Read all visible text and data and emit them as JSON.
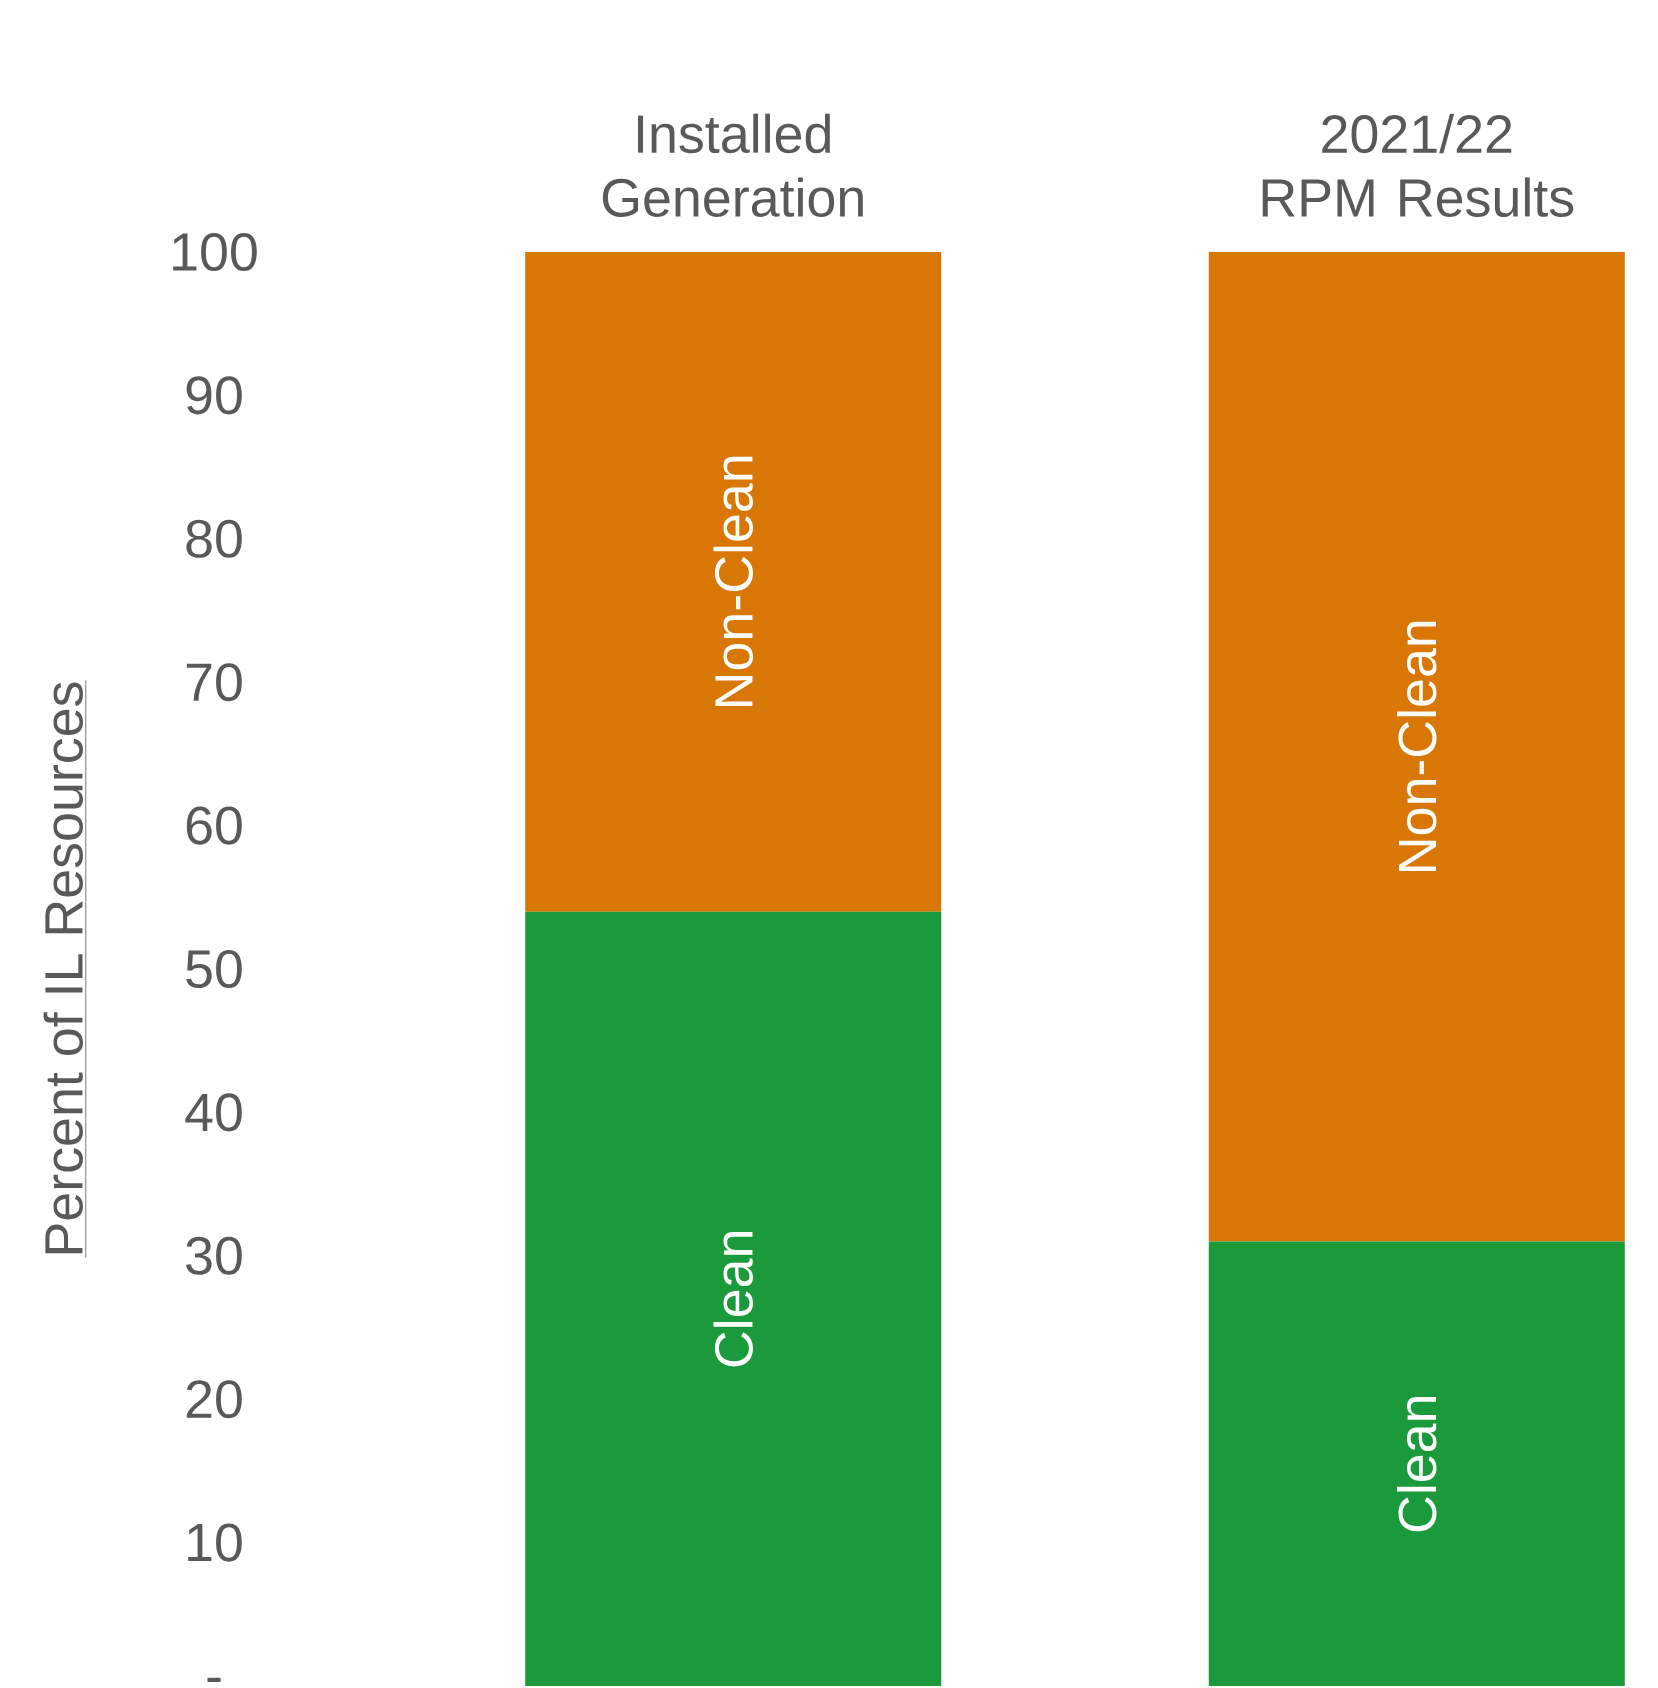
{
  "chart_data": {
    "type": "bar",
    "stacked": true,
    "categories": [
      "Installed Generation",
      "2021/22 RPM Results"
    ],
    "series": [
      {
        "name": "Clean",
        "color": "#1a9a3a",
        "values": [
          54,
          31
        ]
      },
      {
        "name": "Non-Clean",
        "color": "#d97706",
        "values": [
          46,
          69
        ]
      }
    ],
    "ylabel": "Percent of IL Resources",
    "ylim": [
      0,
      100
    ],
    "yticks": [
      {
        "value": 0,
        "label": "-"
      },
      10,
      20,
      30,
      40,
      50,
      60,
      70,
      80,
      90,
      100
    ],
    "grid": false,
    "legend": false
  }
}
